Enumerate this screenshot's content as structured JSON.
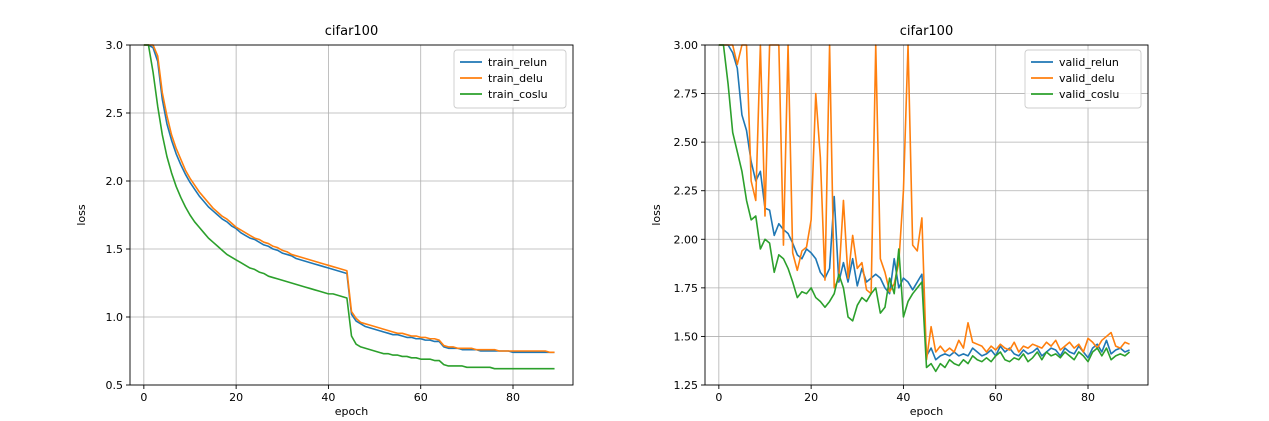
{
  "chart_data": [
    {
      "type": "line",
      "title": "cifar100",
      "xlabel": "epoch",
      "ylabel": "loss",
      "xlim": [
        -3,
        93
      ],
      "ylim": [
        0.5,
        3.0
      ],
      "xticks": [
        "0",
        "20",
        "40",
        "60",
        "80"
      ],
      "yticks": [
        "0.5",
        "1.0",
        "1.5",
        "2.0",
        "2.5",
        "3.0"
      ],
      "grid": true,
      "legend": "top-right",
      "series": [
        {
          "name": "train_relun",
          "color": "#1f77b4",
          "values": [
            3.0,
            3.0,
            2.98,
            2.88,
            2.6,
            2.42,
            2.3,
            2.2,
            2.12,
            2.05,
            1.99,
            1.94,
            1.89,
            1.85,
            1.81,
            1.78,
            1.75,
            1.72,
            1.7,
            1.67,
            1.65,
            1.62,
            1.6,
            1.58,
            1.57,
            1.55,
            1.53,
            1.52,
            1.5,
            1.49,
            1.47,
            1.46,
            1.45,
            1.43,
            1.42,
            1.41,
            1.4,
            1.39,
            1.38,
            1.37,
            1.36,
            1.35,
            1.34,
            1.33,
            1.32,
            1.02,
            0.97,
            0.95,
            0.93,
            0.92,
            0.91,
            0.9,
            0.89,
            0.88,
            0.87,
            0.87,
            0.86,
            0.85,
            0.85,
            0.84,
            0.84,
            0.83,
            0.83,
            0.82,
            0.82,
            0.78,
            0.77,
            0.77,
            0.77,
            0.76,
            0.76,
            0.76,
            0.76,
            0.75,
            0.75,
            0.75,
            0.75,
            0.75,
            0.75,
            0.75,
            0.74,
            0.74,
            0.74,
            0.74,
            0.74,
            0.74,
            0.74,
            0.74,
            0.74,
            0.74
          ]
        },
        {
          "name": "train_delu",
          "color": "#ff7f0e",
          "values": [
            3.0,
            3.0,
            3.0,
            2.92,
            2.65,
            2.48,
            2.34,
            2.24,
            2.16,
            2.08,
            2.02,
            1.97,
            1.92,
            1.88,
            1.84,
            1.8,
            1.77,
            1.74,
            1.72,
            1.69,
            1.66,
            1.64,
            1.62,
            1.6,
            1.58,
            1.57,
            1.55,
            1.54,
            1.52,
            1.51,
            1.49,
            1.48,
            1.46,
            1.45,
            1.44,
            1.43,
            1.42,
            1.41,
            1.4,
            1.39,
            1.38,
            1.37,
            1.36,
            1.35,
            1.34,
            1.04,
            0.99,
            0.96,
            0.95,
            0.94,
            0.93,
            0.92,
            0.91,
            0.9,
            0.89,
            0.88,
            0.88,
            0.87,
            0.86,
            0.86,
            0.85,
            0.85,
            0.84,
            0.84,
            0.83,
            0.79,
            0.78,
            0.78,
            0.77,
            0.77,
            0.77,
            0.77,
            0.76,
            0.76,
            0.76,
            0.76,
            0.76,
            0.75,
            0.75,
            0.75,
            0.75,
            0.75,
            0.75,
            0.75,
            0.75,
            0.75,
            0.75,
            0.75,
            0.74,
            0.74
          ]
        },
        {
          "name": "train_coslu",
          "color": "#2ca02c",
          "values": [
            3.0,
            3.0,
            2.8,
            2.55,
            2.34,
            2.18,
            2.06,
            1.96,
            1.88,
            1.81,
            1.75,
            1.7,
            1.66,
            1.62,
            1.58,
            1.55,
            1.52,
            1.49,
            1.46,
            1.44,
            1.42,
            1.4,
            1.38,
            1.36,
            1.35,
            1.33,
            1.32,
            1.3,
            1.29,
            1.28,
            1.27,
            1.26,
            1.25,
            1.24,
            1.23,
            1.22,
            1.21,
            1.2,
            1.19,
            1.18,
            1.17,
            1.17,
            1.16,
            1.15,
            1.14,
            0.86,
            0.8,
            0.78,
            0.77,
            0.76,
            0.75,
            0.74,
            0.73,
            0.73,
            0.72,
            0.72,
            0.71,
            0.71,
            0.7,
            0.7,
            0.69,
            0.69,
            0.69,
            0.68,
            0.68,
            0.65,
            0.64,
            0.64,
            0.64,
            0.64,
            0.63,
            0.63,
            0.63,
            0.63,
            0.63,
            0.63,
            0.62,
            0.62,
            0.62,
            0.62,
            0.62,
            0.62,
            0.62,
            0.62,
            0.62,
            0.62,
            0.62,
            0.62,
            0.62,
            0.62
          ]
        }
      ]
    },
    {
      "type": "line",
      "title": "cifar100",
      "xlabel": "epoch",
      "ylabel": "loss",
      "xlim": [
        -3,
        93
      ],
      "ylim": [
        1.25,
        3.0
      ],
      "xticks": [
        "0",
        "20",
        "40",
        "60",
        "80"
      ],
      "yticks": [
        "1.25",
        "1.50",
        "1.75",
        "2.00",
        "2.25",
        "2.50",
        "2.75",
        "3.00"
      ],
      "grid": true,
      "legend": "top-right",
      "series": [
        {
          "name": "valid_relun",
          "color": "#1f77b4",
          "values": [
            3.0,
            3.0,
            3.0,
            2.96,
            2.88,
            2.64,
            2.56,
            2.4,
            2.3,
            2.35,
            2.16,
            2.15,
            2.02,
            2.08,
            2.05,
            2.03,
            1.98,
            1.92,
            1.9,
            1.95,
            1.93,
            1.9,
            1.83,
            1.8,
            1.85,
            2.22,
            1.78,
            1.88,
            1.78,
            1.9,
            1.76,
            1.85,
            1.78,
            1.8,
            1.82,
            1.8,
            1.75,
            1.72,
            1.9,
            1.75,
            1.8,
            1.78,
            1.74,
            1.78,
            1.82,
            1.4,
            1.44,
            1.38,
            1.4,
            1.41,
            1.4,
            1.42,
            1.4,
            1.41,
            1.4,
            1.44,
            1.42,
            1.4,
            1.41,
            1.43,
            1.4,
            1.45,
            1.42,
            1.44,
            1.41,
            1.4,
            1.43,
            1.41,
            1.42,
            1.44,
            1.4,
            1.42,
            1.44,
            1.43,
            1.4,
            1.44,
            1.42,
            1.41,
            1.45,
            1.42,
            1.39,
            1.44,
            1.46,
            1.42,
            1.48,
            1.41,
            1.43,
            1.44,
            1.42,
            1.43
          ]
        },
        {
          "name": "valid_delu",
          "color": "#ff7f0e",
          "values": [
            3.0,
            3.0,
            3.0,
            3.0,
            2.9,
            3.0,
            3.0,
            2.3,
            2.2,
            3.0,
            2.12,
            3.0,
            3.0,
            3.0,
            1.97,
            3.0,
            1.93,
            1.84,
            1.94,
            1.96,
            2.1,
            2.75,
            2.42,
            1.79,
            3.0,
            1.75,
            1.8,
            2.2,
            1.8,
            2.02,
            1.85,
            1.88,
            1.74,
            1.72,
            3.0,
            1.9,
            1.83,
            1.73,
            1.77,
            1.88,
            2.25,
            3.0,
            1.97,
            1.94,
            2.11,
            1.38,
            1.55,
            1.42,
            1.45,
            1.42,
            1.44,
            1.42,
            1.48,
            1.44,
            1.57,
            1.47,
            1.46,
            1.45,
            1.42,
            1.45,
            1.43,
            1.46,
            1.44,
            1.43,
            1.47,
            1.42,
            1.45,
            1.44,
            1.46,
            1.45,
            1.44,
            1.47,
            1.45,
            1.48,
            1.43,
            1.45,
            1.47,
            1.44,
            1.46,
            1.42,
            1.49,
            1.47,
            1.44,
            1.48,
            1.5,
            1.52,
            1.45,
            1.44,
            1.47,
            1.46
          ]
        },
        {
          "name": "valid_coslu",
          "color": "#2ca02c",
          "values": [
            3.0,
            3.0,
            2.8,
            2.55,
            2.45,
            2.35,
            2.2,
            2.1,
            2.12,
            1.95,
            2.0,
            1.98,
            1.83,
            1.92,
            1.9,
            1.85,
            1.78,
            1.7,
            1.73,
            1.72,
            1.75,
            1.7,
            1.68,
            1.65,
            1.68,
            1.72,
            1.82,
            1.75,
            1.6,
            1.58,
            1.66,
            1.7,
            1.68,
            1.72,
            1.75,
            1.62,
            1.65,
            1.8,
            1.72,
            1.95,
            1.6,
            1.68,
            1.72,
            1.75,
            1.78,
            1.34,
            1.36,
            1.32,
            1.36,
            1.34,
            1.38,
            1.36,
            1.35,
            1.38,
            1.36,
            1.4,
            1.38,
            1.37,
            1.39,
            1.37,
            1.4,
            1.42,
            1.38,
            1.37,
            1.39,
            1.38,
            1.41,
            1.37,
            1.39,
            1.42,
            1.38,
            1.42,
            1.4,
            1.41,
            1.39,
            1.42,
            1.4,
            1.38,
            1.42,
            1.4,
            1.37,
            1.42,
            1.44,
            1.4,
            1.44,
            1.38,
            1.4,
            1.41,
            1.4,
            1.42
          ]
        }
      ]
    }
  ]
}
